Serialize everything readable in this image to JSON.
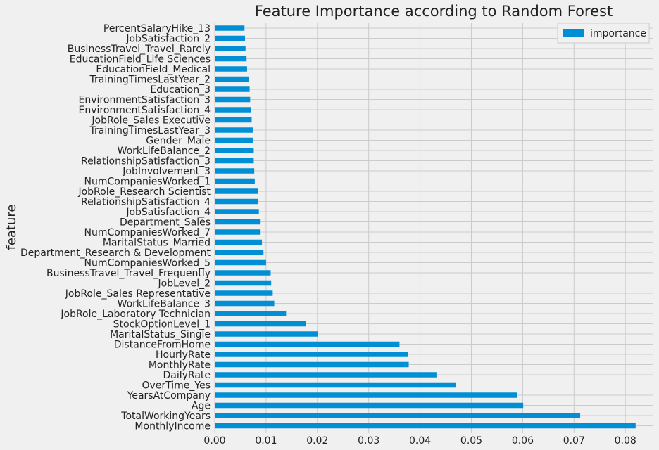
{
  "chart_data": {
    "type": "bar",
    "orientation": "horizontal",
    "title": "Feature Importance according to Random Forest",
    "xlabel": "",
    "ylabel": "feature",
    "xlim": [
      0,
      0.084
    ],
    "xticks": [
      "0.00",
      "0.01",
      "0.02",
      "0.03",
      "0.04",
      "0.05",
      "0.06",
      "0.07",
      "0.08"
    ],
    "xtick_values": [
      0,
      0.01,
      0.02,
      0.03,
      0.04,
      0.05,
      0.06,
      0.07,
      0.08
    ],
    "grid": true,
    "legend_position": "top-right",
    "bar_color": "#008fd5",
    "categories": [
      "MonthlyIncome",
      "TotalWorkingYears",
      "Age",
      "YearsAtCompany",
      "OverTime_Yes",
      "DailyRate",
      "MonthlyRate",
      "HourlyRate",
      "DistanceFromHome",
      "MaritalStatus_Single",
      "StockOptionLevel_1",
      "JobRole_Laboratory Technician",
      "WorkLifeBalance_3",
      "JobRole_Sales Representative",
      "JobLevel_2",
      "BusinessTravel_Travel_Frequently",
      "NumCompaniesWorked_5",
      "Department_Research & Development",
      "MaritalStatus_Married",
      "NumCompaniesWorked_7",
      "Department_Sales",
      "JobSatisfaction_4",
      "RelationshipSatisfaction_4",
      "JobRole_Research Scientist",
      "NumCompaniesWorked_1",
      "JobInvolvement_3",
      "RelationshipSatisfaction_3",
      "WorkLifeBalance_2",
      "Gender_Male",
      "TrainingTimesLastYear_3",
      "JobRole_Sales Executive",
      "EnvironmentSatisfaction_4",
      "EnvironmentSatisfaction_3",
      "Education_3",
      "TrainingTimesLastYear_2",
      "EducationField_Medical",
      "EducationField_Life Sciences",
      "BusinessTravel_Travel_Rarely",
      "JobSatisfaction_2",
      "PercentSalaryHike_13"
    ],
    "series": [
      {
        "name": "importance",
        "values": [
          0.082,
          0.0712,
          0.0601,
          0.0589,
          0.047,
          0.0432,
          0.0378,
          0.0376,
          0.036,
          0.0201,
          0.0178,
          0.0139,
          0.0116,
          0.0113,
          0.011,
          0.0109,
          0.01,
          0.0095,
          0.0092,
          0.0088,
          0.0088,
          0.0086,
          0.0085,
          0.0084,
          0.0078,
          0.0077,
          0.0076,
          0.0076,
          0.0074,
          0.0074,
          0.0072,
          0.0071,
          0.0069,
          0.0068,
          0.0066,
          0.0063,
          0.0062,
          0.006,
          0.0059,
          0.0058
        ]
      }
    ]
  }
}
